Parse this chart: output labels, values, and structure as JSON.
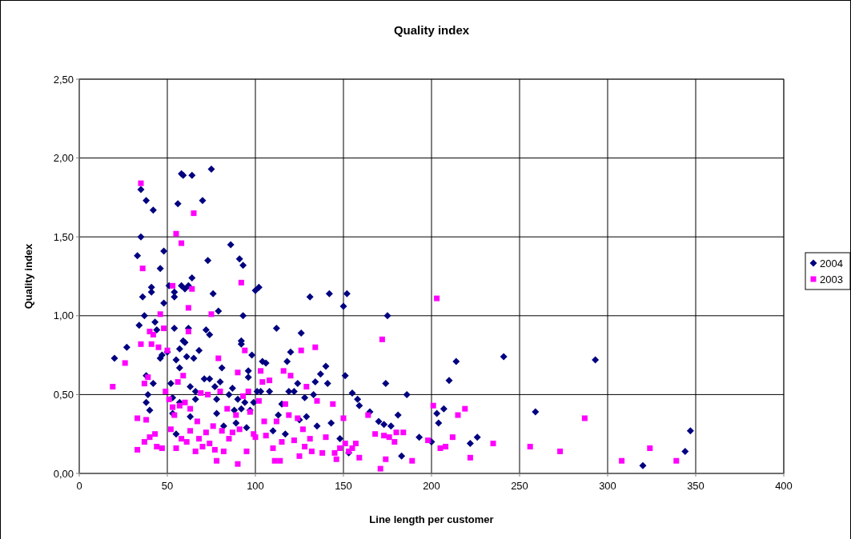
{
  "chart_data": {
    "type": "scatter",
    "title": "Quality index",
    "xlabel": "Line length per customer",
    "ylabel": "Quality index",
    "xlim": [
      0,
      400
    ],
    "ylim": [
      0,
      2.5
    ],
    "xticks": [
      0,
      50,
      100,
      150,
      200,
      250,
      300,
      350,
      400
    ],
    "yticks": [
      {
        "value": 0,
        "label": "0,00"
      },
      {
        "value": 0.5,
        "label": "0,50"
      },
      {
        "value": 1,
        "label": "1,00"
      },
      {
        "value": 1.5,
        "label": "1,50"
      },
      {
        "value": 2,
        "label": "2,00"
      },
      {
        "value": 2.5,
        "label": "2,50"
      }
    ],
    "grid": true,
    "legend": "right",
    "series": [
      {
        "name": "2004",
        "color": "#000080",
        "marker": "diamond",
        "x": [
          20,
          27,
          33,
          34,
          35,
          35,
          36,
          37,
          38,
          38,
          39,
          38,
          40,
          41,
          41,
          42,
          42,
          43,
          44,
          46,
          46,
          47,
          48,
          48,
          50,
          51,
          52,
          53,
          53,
          54,
          54,
          54,
          55,
          55,
          56,
          57,
          57,
          57,
          58,
          58,
          59,
          59,
          60,
          60,
          61,
          62,
          62,
          63,
          63,
          64,
          64,
          65,
          66,
          66,
          68,
          70,
          71,
          72,
          73,
          74,
          74,
          75,
          76,
          77,
          78,
          78,
          79,
          80,
          81,
          82,
          85,
          86,
          87,
          88,
          89,
          90,
          91,
          92,
          92,
          92,
          93,
          93,
          94,
          95,
          96,
          96,
          97,
          98,
          99,
          100,
          101,
          102,
          103,
          104,
          106,
          108,
          110,
          112,
          113,
          115,
          117,
          118,
          119,
          120,
          122,
          124,
          125,
          126,
          128,
          129,
          131,
          133,
          134,
          135,
          137,
          140,
          141,
          142,
          143,
          148,
          150,
          151,
          152,
          153,
          155,
          158,
          159,
          165,
          170,
          173,
          174,
          175,
          177,
          181,
          183,
          186,
          193,
          200,
          203,
          204,
          207,
          210,
          214,
          222,
          226,
          241,
          259,
          293,
          320,
          344,
          347
        ],
        "values": [
          0.73,
          0.8,
          1.38,
          0.94,
          1.8,
          1.5,
          1.12,
          1.0,
          1.73,
          0.62,
          0.5,
          0.45,
          0.4,
          1.18,
          1.15,
          0.57,
          1.67,
          0.96,
          0.91,
          0.73,
          1.3,
          0.75,
          1.41,
          1.08,
          0.77,
          1.19,
          0.57,
          0.48,
          0.38,
          1.15,
          1.12,
          0.92,
          0.72,
          0.25,
          1.71,
          0.45,
          0.79,
          0.67,
          1.19,
          1.9,
          1.89,
          0.84,
          1.17,
          0.83,
          0.74,
          1.19,
          0.92,
          0.55,
          0.36,
          1.89,
          1.24,
          0.73,
          0.47,
          0.52,
          0.78,
          1.73,
          0.6,
          0.91,
          1.35,
          0.6,
          0.88,
          1.93,
          1.14,
          0.55,
          0.38,
          0.47,
          1.03,
          0.58,
          0.67,
          0.3,
          0.5,
          1.45,
          0.54,
          0.4,
          0.32,
          0.47,
          1.36,
          0.84,
          0.82,
          0.41,
          1.0,
          1.32,
          0.45,
          0.29,
          0.65,
          0.61,
          0.4,
          0.75,
          0.45,
          1.16,
          0.52,
          1.18,
          0.52,
          0.71,
          0.7,
          0.52,
          0.27,
          0.92,
          0.37,
          0.44,
          0.25,
          0.71,
          0.52,
          0.77,
          0.52,
          0.57,
          0.34,
          0.89,
          0.48,
          0.36,
          1.12,
          0.5,
          0.58,
          0.3,
          0.63,
          0.68,
          0.57,
          1.14,
          0.32,
          0.22,
          1.06,
          0.62,
          1.14,
          0.13,
          0.51,
          0.47,
          0.43,
          0.39,
          0.33,
          0.31,
          0.57,
          1.0,
          0.3,
          0.37,
          0.11,
          0.5,
          0.23,
          0.2,
          0.38,
          0.32,
          0.41,
          0.59,
          0.71,
          0.19,
          0.23,
          0.74,
          0.39,
          0.72,
          0.05,
          0.14,
          0.27
        ]
      },
      {
        "name": "2003",
        "color": "#ff00ff",
        "marker": "square",
        "x": [
          19,
          26,
          33,
          33,
          35,
          35,
          36,
          37,
          37,
          38,
          39,
          40,
          40,
          41,
          42,
          43,
          44,
          45,
          46,
          47,
          48,
          49,
          50,
          51,
          52,
          53,
          53,
          54,
          55,
          55,
          56,
          57,
          58,
          58,
          59,
          60,
          61,
          62,
          62,
          63,
          63,
          64,
          65,
          66,
          67,
          68,
          69,
          70,
          72,
          73,
          74,
          75,
          76,
          77,
          78,
          79,
          80,
          81,
          82,
          84,
          85,
          87,
          89,
          90,
          90,
          91,
          92,
          93,
          94,
          95,
          96,
          97,
          99,
          100,
          102,
          103,
          104,
          105,
          106,
          108,
          110,
          111,
          112,
          114,
          115,
          116,
          117,
          119,
          120,
          122,
          124,
          125,
          126,
          127,
          128,
          129,
          131,
          132,
          134,
          135,
          138,
          140,
          144,
          145,
          146,
          148,
          150,
          151,
          153,
          155,
          157,
          159,
          164,
          168,
          171,
          172,
          173,
          174,
          176,
          179,
          180,
          184,
          189,
          198,
          201,
          203,
          205,
          208,
          212,
          215,
          219,
          222,
          235,
          256,
          273,
          287,
          308,
          324,
          339
        ],
        "values": [
          0.55,
          0.7,
          0.35,
          0.15,
          0.82,
          1.84,
          1.3,
          0.57,
          0.2,
          0.34,
          0.61,
          0.9,
          0.23,
          0.82,
          0.88,
          0.25,
          0.17,
          0.8,
          1.01,
          0.16,
          0.92,
          0.52,
          0.78,
          0.47,
          0.28,
          1.19,
          0.42,
          0.37,
          1.52,
          0.16,
          0.58,
          0.43,
          1.46,
          0.22,
          0.62,
          0.45,
          0.2,
          1.05,
          0.9,
          0.41,
          0.27,
          1.17,
          1.65,
          0.14,
          0.33,
          0.22,
          0.51,
          0.17,
          0.26,
          0.5,
          0.19,
          1.01,
          0.3,
          0.15,
          0.08,
          0.73,
          0.52,
          0.27,
          0.14,
          0.41,
          0.22,
          0.26,
          0.37,
          0.64,
          0.06,
          0.28,
          1.21,
          0.49,
          0.78,
          0.14,
          0.52,
          0.39,
          0.25,
          0.23,
          0.46,
          0.65,
          0.58,
          0.33,
          0.24,
          0.59,
          0.16,
          0.08,
          0.33,
          0.08,
          0.2,
          0.65,
          0.44,
          0.37,
          0.62,
          0.21,
          0.35,
          0.11,
          0.78,
          0.28,
          0.17,
          0.55,
          0.22,
          0.14,
          0.8,
          0.46,
          0.13,
          0.23,
          0.44,
          0.13,
          0.09,
          0.16,
          0.35,
          0.19,
          0.14,
          0.16,
          0.19,
          0.1,
          0.37,
          0.25,
          0.03,
          0.85,
          0.24,
          0.09,
          0.23,
          0.2,
          0.26,
          0.26,
          0.08,
          0.21,
          0.43,
          1.11,
          0.16,
          0.17,
          0.23,
          0.37,
          0.41,
          0.1,
          0.19,
          0.17,
          0.14,
          0.35,
          0.08,
          0.16,
          0.08
        ]
      }
    ]
  }
}
